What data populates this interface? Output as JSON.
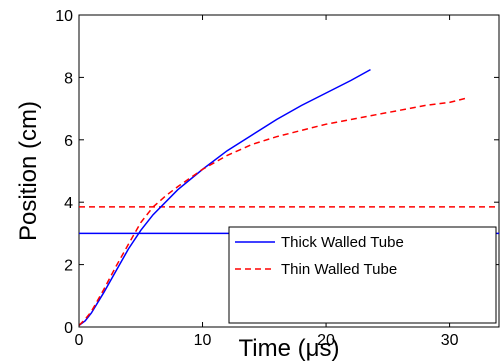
{
  "chart_data": {
    "type": "line",
    "xlabel": "Time (μs)",
    "ylabel": "Position (cm)",
    "xlim": [
      0,
      34
    ],
    "ylim": [
      0,
      10
    ],
    "xticks": [
      "0",
      "10",
      "20",
      "30"
    ],
    "xtick_values": [
      0,
      10,
      20,
      30
    ],
    "yticks": [
      "0",
      "2",
      "4",
      "6",
      "8",
      "10"
    ],
    "ytick_values": [
      0,
      2,
      4,
      6,
      8,
      10
    ],
    "grid": false,
    "legend_position": "bottom-right",
    "series": [
      {
        "name": "Thick Walled Tube",
        "color": "#0000ff",
        "style": "solid",
        "x": [
          0,
          0.5,
          1,
          2,
          3,
          4,
          5,
          6,
          8,
          10,
          12,
          14,
          16,
          18,
          20,
          22,
          23.6
        ],
        "y": [
          0.05,
          0.2,
          0.45,
          1.1,
          1.8,
          2.5,
          3.1,
          3.6,
          4.4,
          5.05,
          5.65,
          6.15,
          6.65,
          7.1,
          7.5,
          7.9,
          8.25
        ]
      },
      {
        "name": "Thin Walled Tube",
        "color": "#ff0000",
        "style": "dashed",
        "x": [
          0,
          0.5,
          1,
          2,
          3,
          4,
          5,
          6,
          7,
          8,
          10,
          12,
          14,
          16,
          18,
          20,
          22,
          24,
          26,
          28,
          30,
          31.5
        ],
        "y": [
          0.05,
          0.25,
          0.5,
          1.2,
          1.95,
          2.65,
          3.35,
          3.85,
          4.2,
          4.5,
          5.05,
          5.5,
          5.85,
          6.1,
          6.3,
          6.5,
          6.65,
          6.8,
          6.95,
          7.1,
          7.2,
          7.35
        ]
      }
    ],
    "reference_lines": [
      {
        "orientation": "horizontal",
        "y": 3.0,
        "color": "#0000ff",
        "style": "solid"
      },
      {
        "orientation": "horizontal",
        "y": 3.85,
        "color": "#ff0000",
        "style": "dashed"
      }
    ]
  }
}
